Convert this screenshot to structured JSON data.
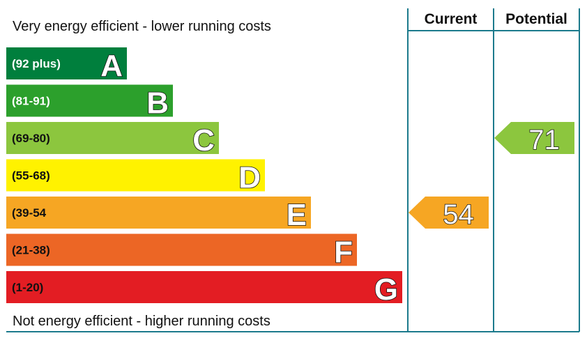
{
  "chart_data": {
    "type": "bar",
    "top_caption": "Very energy efficient - lower running costs",
    "bottom_caption": "Not energy efficient - higher running costs",
    "column_headers": {
      "current": "Current",
      "potential": "Potential"
    },
    "bands": [
      {
        "range": "(92 plus)",
        "letter": "A",
        "color": "#008054",
        "text_color": "#ffffff"
      },
      {
        "range": "(81-91)",
        "letter": "B",
        "color": "#19b459",
        "text_color": "#ffffff"
      },
      {
        "range": "(69-80)",
        "letter": "C",
        "color": "#8dce46",
        "text_color": "#111111"
      },
      {
        "range": "(55-68)",
        "letter": "D",
        "color": "#ffd500",
        "text_color": "#111111"
      },
      {
        "range": "(39-54",
        "letter": "E",
        "color": "#fcaa65",
        "text_color": "#111111"
      },
      {
        "range": "(21-38)",
        "letter": "F",
        "color": "#ef8023",
        "text_color": "#111111"
      },
      {
        "range": "(1-20)",
        "letter": "G",
        "color": "#e9153b",
        "text_color": "#111111"
      }
    ],
    "current": {
      "value": 54,
      "band": "E",
      "color": "#f6a623"
    },
    "potential": {
      "value": 71,
      "band": "C",
      "color": "#8cc63e"
    },
    "line_color": "#1b7a8c"
  }
}
